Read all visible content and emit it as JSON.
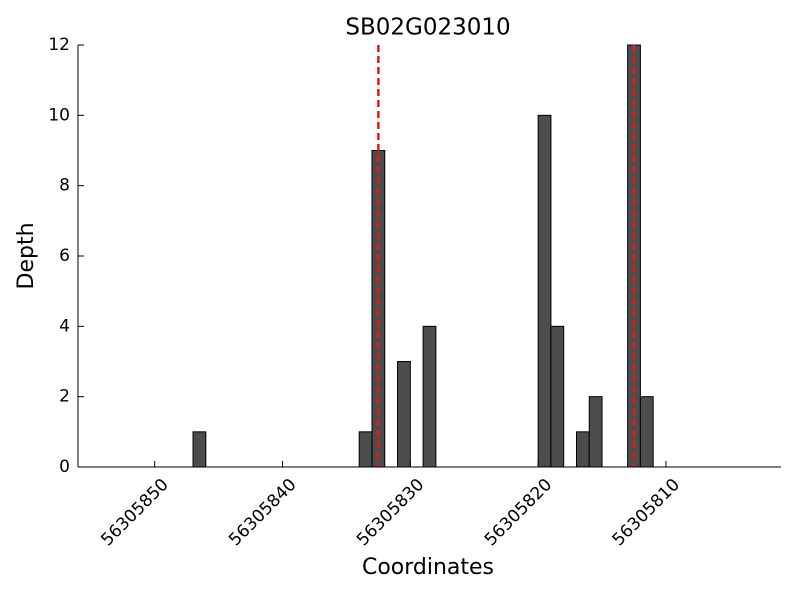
{
  "chart_data": {
    "type": "bar",
    "title": "SB02G023010",
    "xlabel": "Coordinates",
    "ylabel": "Depth",
    "x": [
      56305846,
      56305833,
      56305832,
      56305830,
      56305828,
      56305819,
      56305818,
      56305816,
      56305815,
      56305812,
      56305811
    ],
    "values": [
      1,
      1,
      9,
      3,
      4,
      10,
      4,
      1,
      2,
      12,
      2
    ],
    "bar_width": 1,
    "bar_align": "edge",
    "color": "#4d4d4d",
    "xlim": [
      56305856,
      56305801
    ],
    "xticks": [
      56305850,
      56305840,
      56305830,
      56305820,
      56305810
    ],
    "ylim": [
      0,
      12
    ],
    "yticks": [
      0,
      2,
      4,
      6,
      8,
      10,
      12
    ],
    "vlines": [
      56305832.5,
      56305812.5
    ],
    "vline_color": "#e31a1c",
    "grid": false
  }
}
